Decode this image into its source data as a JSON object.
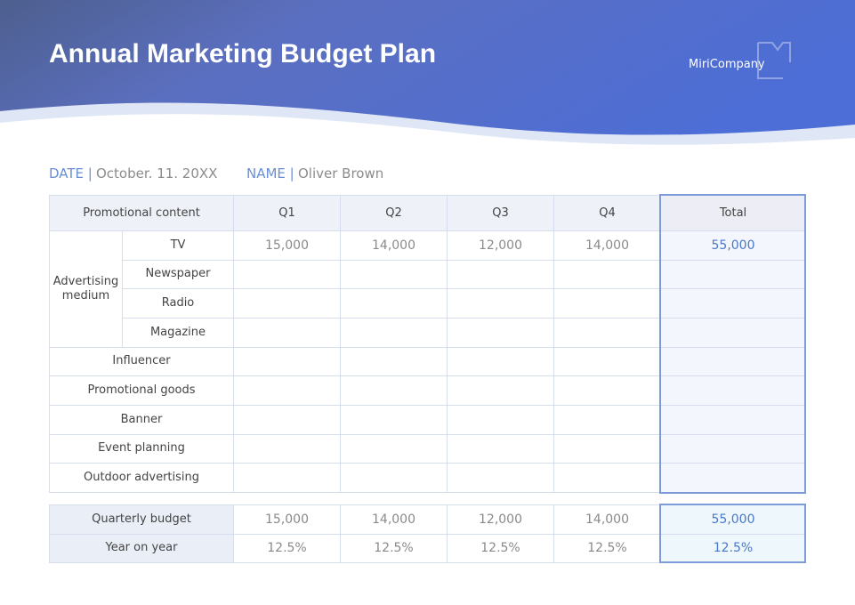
{
  "header": {
    "title": "Annual Marketing Budget Plan",
    "company": "MiriCompany"
  },
  "meta": {
    "date_label": "DATE |",
    "date": "October. 11. 20XX",
    "name_label": "NAME |",
    "name": "Oliver Brown"
  },
  "table": {
    "columns": [
      "Promotional content",
      "Q1",
      "Q2",
      "Q3",
      "Q4",
      "Total"
    ],
    "group": "Advertising medium",
    "rows": [
      {
        "label": "TV",
        "cells": [
          "15,000",
          "14,000",
          "12,000",
          "14,000",
          "55,000"
        ]
      },
      {
        "label": "Newspaper"
      },
      {
        "label": "Radio"
      },
      {
        "label": "Magazine"
      },
      {
        "label": "Influencer"
      },
      {
        "label": "Promotional goods"
      },
      {
        "label": "Banner"
      },
      {
        "label": "Event planning"
      },
      {
        "label": "Outdoor advertising"
      }
    ]
  },
  "summary": {
    "rows": [
      {
        "label": "Quarterly budget",
        "cells": [
          "15,000",
          "14,000",
          "12,000",
          "14,000",
          "55,000"
        ]
      },
      {
        "label": "Year on year",
        "cells": [
          "12.5%",
          "12.5%",
          "12.5%",
          "12.5%",
          "12.5%"
        ]
      }
    ]
  }
}
